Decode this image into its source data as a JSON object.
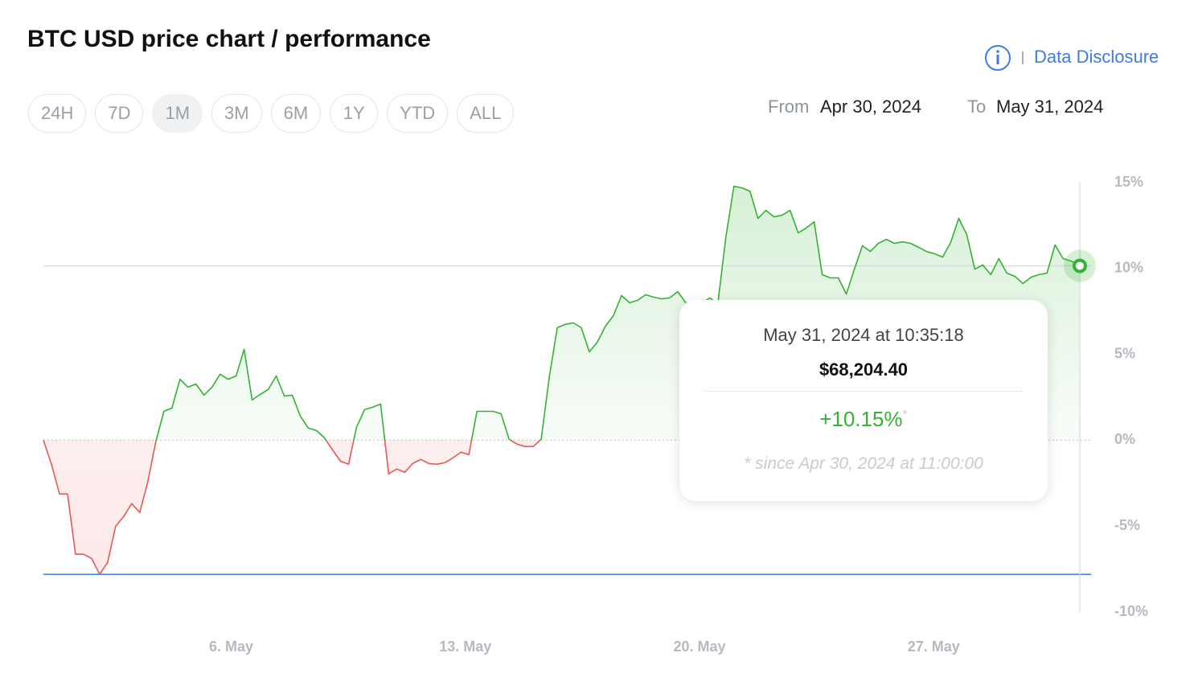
{
  "header": {
    "title": "BTC USD price chart / performance",
    "disclosure": "Data Disclosure"
  },
  "ranges": {
    "options": [
      "24H",
      "7D",
      "1M",
      "3M",
      "6M",
      "1Y",
      "YTD",
      "ALL"
    ],
    "active": "1M"
  },
  "period": {
    "from_label": "From",
    "from": "Apr 30, 2024",
    "to_label": "To",
    "to": "May 31, 2024"
  },
  "chart_data": {
    "type": "line",
    "x": [
      0.46,
      0.7,
      0.94,
      1.18,
      1.42,
      1.66,
      1.9,
      2.14,
      2.38,
      2.62,
      2.86,
      3.1,
      3.34,
      3.58,
      3.82,
      4.06,
      4.3,
      4.54,
      4.78,
      5.02,
      5.26,
      5.5,
      5.74,
      5.98,
      6.22,
      6.46,
      6.7,
      6.94,
      7.18,
      7.42,
      7.66,
      7.9,
      8.14,
      8.38,
      8.62,
      8.86,
      9.1,
      9.34,
      9.58,
      9.82,
      10.06,
      10.3,
      10.54,
      10.78,
      11.02,
      11.26,
      11.5,
      11.74,
      11.98,
      12.22,
      12.46,
      12.7,
      12.94,
      13.18,
      13.42,
      13.66,
      13.9,
      14.14,
      14.38,
      14.62,
      14.86,
      15.1,
      15.34,
      15.58,
      15.82,
      16.06,
      16.3,
      16.54,
      16.78,
      17.02,
      17.26,
      17.5,
      17.74,
      17.98,
      18.22,
      18.46,
      18.7,
      18.94,
      19.18,
      19.42,
      19.66,
      19.9,
      20.14,
      20.38,
      20.62,
      20.86,
      21.1,
      21.34,
      21.58,
      21.82,
      22.06,
      22.3,
      22.54,
      22.78,
      23.02,
      23.26,
      23.5,
      23.74,
      23.98,
      24.22,
      24.46,
      24.7,
      24.94,
      25.18,
      25.42,
      25.66,
      25.9,
      26.14,
      26.38,
      26.62,
      26.86,
      27.1,
      27.34,
      27.58,
      27.82,
      28.06,
      28.3,
      28.54,
      28.78,
      29.02,
      29.26,
      29.5,
      29.74,
      29.98,
      30.22,
      30.46,
      30.7,
      30.94,
      31.18,
      31.44
    ],
    "series": [
      {
        "color": "#34b233",
        "negative_color": "#e35a55",
        "values": [
          0,
          -1.4,
          -3.13,
          -3.13,
          -6.64,
          -6.64,
          -6.88,
          -7.81,
          -7.11,
          -5.0,
          -4.44,
          -3.7,
          -4.21,
          -2.43,
          -0.09,
          1.68,
          1.87,
          3.55,
          3.09,
          3.27,
          2.62,
          3.09,
          3.84,
          3.55,
          3.74,
          5.29,
          2.34,
          2.67,
          2.95,
          3.74,
          2.57,
          2.62,
          1.4,
          0.7,
          0.56,
          0.14,
          -0.56,
          -1.22,
          -1.4,
          0.75,
          1.78,
          1.92,
          2.1,
          -1.96,
          -1.68,
          -1.87,
          -1.36,
          -1.12,
          -1.36,
          -1.4,
          -1.31,
          -1.03,
          -0.7,
          -0.84,
          1.68,
          1.68,
          1.68,
          1.54,
          0.05,
          -0.23,
          -0.37,
          -0.37,
          0.05,
          3.65,
          6.55,
          6.74,
          6.83,
          6.55,
          5.14,
          5.71,
          6.64,
          7.25,
          8.42,
          8.0,
          8.14,
          8.47,
          8.33,
          8.23,
          8.28,
          8.65,
          8.0,
          7.95,
          8.0,
          8.28,
          7.95,
          11.83,
          14.78,
          14.69,
          14.5,
          12.91,
          13.38,
          13.0,
          13.1,
          13.38,
          12.07,
          12.35,
          12.72,
          9.64,
          9.45,
          9.45,
          8.51,
          9.96,
          11.32,
          10.99,
          11.46,
          11.69,
          11.46,
          11.55,
          11.46,
          11.23,
          10.99,
          10.85,
          10.66,
          11.51,
          12.91,
          11.97,
          9.96,
          10.2,
          9.64,
          10.57,
          9.73,
          9.54,
          9.12,
          9.49,
          9.64,
          9.73,
          11.37,
          10.57,
          10.43,
          10.15
        ]
      }
    ],
    "xlim": [
      0.46,
      31.44
    ],
    "xticks": [
      {
        "value": 6,
        "label": "6. May"
      },
      {
        "value": 13,
        "label": "13. May"
      },
      {
        "value": 20,
        "label": "20. May"
      },
      {
        "value": 27,
        "label": "27. May"
      }
    ],
    "ylim": [
      -10,
      15
    ],
    "yticks": [
      {
        "value": -10,
        "label": "-10%"
      },
      {
        "value": -5,
        "label": "-5%"
      },
      {
        "value": 0,
        "label": "0%"
      },
      {
        "value": 5,
        "label": "5%"
      },
      {
        "value": 10,
        "label": "10%"
      },
      {
        "value": 15,
        "label": "15%"
      }
    ]
  },
  "tooltip": {
    "date": "May 31, 2024 at 10:35:18",
    "price": "$68,204.40",
    "change": "+10.15%",
    "note_mark": "*",
    "note": "* since Apr 30, 2024 at 11:00:00"
  }
}
